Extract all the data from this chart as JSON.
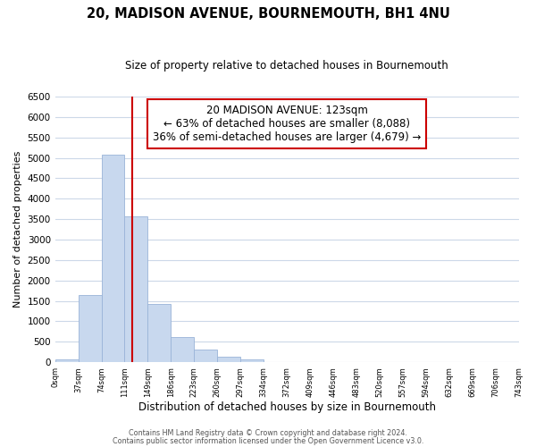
{
  "title": "20, MADISON AVENUE, BOURNEMOUTH, BH1 4NU",
  "subtitle": "Size of property relative to detached houses in Bournemouth",
  "xlabel": "Distribution of detached houses by size in Bournemouth",
  "ylabel": "Number of detached properties",
  "bar_edges": [
    0,
    37,
    74,
    111,
    148,
    185,
    222,
    259,
    296,
    333,
    370,
    407,
    444,
    481,
    518,
    555,
    592,
    629,
    666,
    703,
    740
  ],
  "bar_heights": [
    60,
    1650,
    5080,
    3580,
    1430,
    610,
    300,
    145,
    60,
    0,
    0,
    0,
    0,
    0,
    0,
    0,
    0,
    0,
    0,
    0
  ],
  "tick_labels": [
    "0sqm",
    "37sqm",
    "74sqm",
    "111sqm",
    "149sqm",
    "186sqm",
    "223sqm",
    "260sqm",
    "297sqm",
    "334sqm",
    "372sqm",
    "409sqm",
    "446sqm",
    "483sqm",
    "520sqm",
    "557sqm",
    "594sqm",
    "632sqm",
    "669sqm",
    "706sqm",
    "743sqm"
  ],
  "ylim": [
    0,
    6500
  ],
  "yticks": [
    0,
    500,
    1000,
    1500,
    2000,
    2500,
    3000,
    3500,
    4000,
    4500,
    5000,
    5500,
    6000,
    6500
  ],
  "property_size": 123,
  "bar_color": "#c8d8ee",
  "bar_edge_color": "#9ab4d8",
  "vline_color": "#cc0000",
  "ann_line1": "20 MADISON AVENUE: 123sqm",
  "ann_line2": "← 63% of detached houses are smaller (8,088)",
  "ann_line3": "36% of semi-detached houses are larger (4,679) →",
  "footer_line1": "Contains HM Land Registry data © Crown copyright and database right 2024.",
  "footer_line2": "Contains public sector information licensed under the Open Government Licence v3.0.",
  "background_color": "#ffffff",
  "grid_color": "#ccd8e8"
}
